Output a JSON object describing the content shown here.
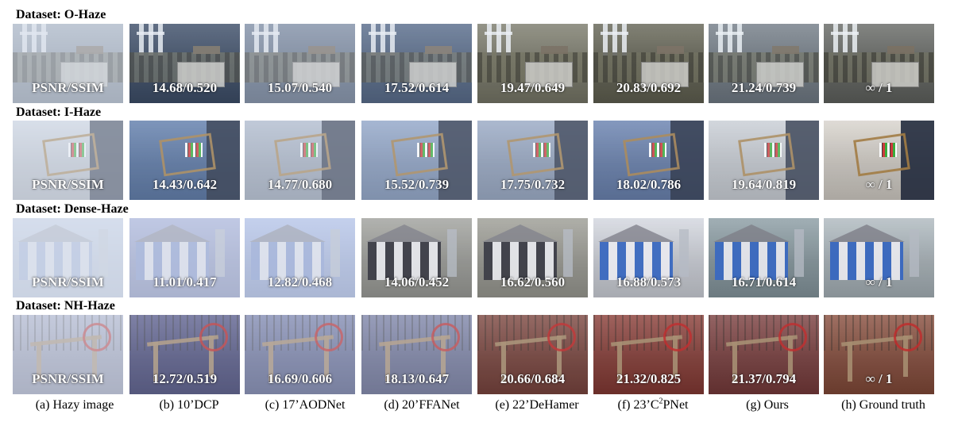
{
  "datasets": [
    {
      "label": "Dataset: O-Haze",
      "scene": "ohaze",
      "cells": [
        {
          "metric": "PSNR/SSIM",
          "tint": "#7f8a97",
          "haze": 0.55
        },
        {
          "metric": "14.68/0.520",
          "tint": "#2a3950",
          "haze": 0.15
        },
        {
          "metric": "15.07/0.540",
          "tint": "#56657a",
          "haze": 0.35
        },
        {
          "metric": "17.52/0.614",
          "tint": "#3c4f6b",
          "haze": 0.2
        },
        {
          "metric": "19.47/0.649",
          "tint": "#6e6e60",
          "haze": 0.05
        },
        {
          "metric": "20.83/0.692",
          "tint": "#5a5a4c",
          "haze": 0.05
        },
        {
          "metric": "21.24/0.739",
          "tint": "#626a72",
          "haze": 0.1
        },
        {
          "metric": "∞ / 1",
          "tint": "#5d5f5c",
          "haze": 0.03
        }
      ]
    },
    {
      "label": "Dataset: I-Haze",
      "scene": "ihaze",
      "cells": [
        {
          "metric": "PSNR/SSIM",
          "tint": "#b6bcc4",
          "haze": 0.55
        },
        {
          "metric": "14.43/0.642",
          "tint": "#3d5a88",
          "haze": 0.25
        },
        {
          "metric": "14.77/0.680",
          "tint": "#8b96a6",
          "haze": 0.45
        },
        {
          "metric": "15.52/0.739",
          "tint": "#6e83a5",
          "haze": 0.3
        },
        {
          "metric": "17.75/0.732",
          "tint": "#7686a0",
          "haze": 0.3
        },
        {
          "metric": "18.02/0.786",
          "tint": "#4d6590",
          "haze": 0.2
        },
        {
          "metric": "19.64/0.819",
          "tint": "#aeb1b5",
          "haze": 0.25
        },
        {
          "metric": "∞ / 1",
          "tint": "#bdb9b2",
          "haze": 0.05
        }
      ]
    },
    {
      "label": "Dataset: Dense-Haze",
      "scene": "dense",
      "cells": [
        {
          "metric": "PSNR/SSIM",
          "tint": "#aab6cf",
          "haze": 0.8
        },
        {
          "metric": "11.01/0.417",
          "tint": "#7b86b6",
          "haze": 0.6
        },
        {
          "metric": "12.82/0.468",
          "tint": "#8a9ccc",
          "haze": 0.55
        },
        {
          "metric": "14.06/0.452",
          "tint": "#8b8b86",
          "haze": 0.1
        },
        {
          "metric": "16.62/0.560",
          "tint": "#88877f",
          "haze": 0.1
        },
        {
          "metric": "16.88/0.573",
          "tint": "#b9bcc2",
          "haze": 0.05
        },
        {
          "metric": "16.71/0.614",
          "tint": "#7b8a8f",
          "haze": 0.05
        },
        {
          "metric": "∞ / 1",
          "tint": "#9aa3a8",
          "haze": 0.03
        }
      ]
    },
    {
      "label": "Dataset: NH-Haze",
      "scene": "nhhaze",
      "cells": [
        {
          "metric": "PSNR/SSIM",
          "tint": "#8c90a8",
          "haze": 0.55
        },
        {
          "metric": "12.72/0.519",
          "tint": "#3e3f6c",
          "haze": 0.25
        },
        {
          "metric": "16.69/0.606",
          "tint": "#5a628a",
          "haze": 0.35
        },
        {
          "metric": "18.13/0.647",
          "tint": "#5a5f82",
          "haze": 0.3
        },
        {
          "metric": "20.66/0.684",
          "tint": "#6b3a33",
          "haze": 0.1
        },
        {
          "metric": "21.32/0.825",
          "tint": "#7a3a34",
          "haze": 0.05
        },
        {
          "metric": "21.37/0.794",
          "tint": "#6e3b3a",
          "haze": 0.05
        },
        {
          "metric": "∞ / 1",
          "tint": "#7a4a3c",
          "haze": 0.03
        }
      ]
    }
  ],
  "captions": [
    {
      "text": "(a) Hazy image"
    },
    {
      "text": "(b) 10’DCP"
    },
    {
      "text": "(c) 17’AODNet"
    },
    {
      "text": "(d) 20’FFANet"
    },
    {
      "text": "(e) 22’DeHamer"
    },
    {
      "text": "(f) 23’C",
      "sup": "2",
      "tail": "PNet"
    },
    {
      "text": "(g) Ours"
    },
    {
      "text": "(h) Ground truth"
    }
  ]
}
